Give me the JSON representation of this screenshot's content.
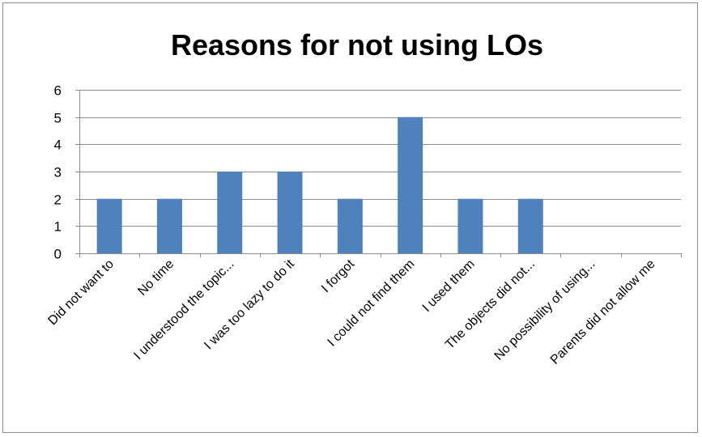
{
  "chart_data": {
    "type": "bar",
    "title": "Reasons for not using LOs",
    "categories": [
      "Did not want to",
      "No time",
      "I understood the topic...",
      "I was too lazy to do it",
      "I forgot",
      "I could not find them",
      "I used them",
      "The objects did not...",
      "No possibility of using...",
      "Parents did not allow me"
    ],
    "values": [
      2,
      2,
      3,
      3,
      2,
      5,
      2,
      2,
      0,
      0
    ],
    "ylim": [
      0,
      6
    ],
    "yticks": [
      0,
      1,
      2,
      3,
      4,
      5,
      6
    ],
    "grid": true,
    "legend": "none",
    "bar_color": "#4f81bd"
  }
}
